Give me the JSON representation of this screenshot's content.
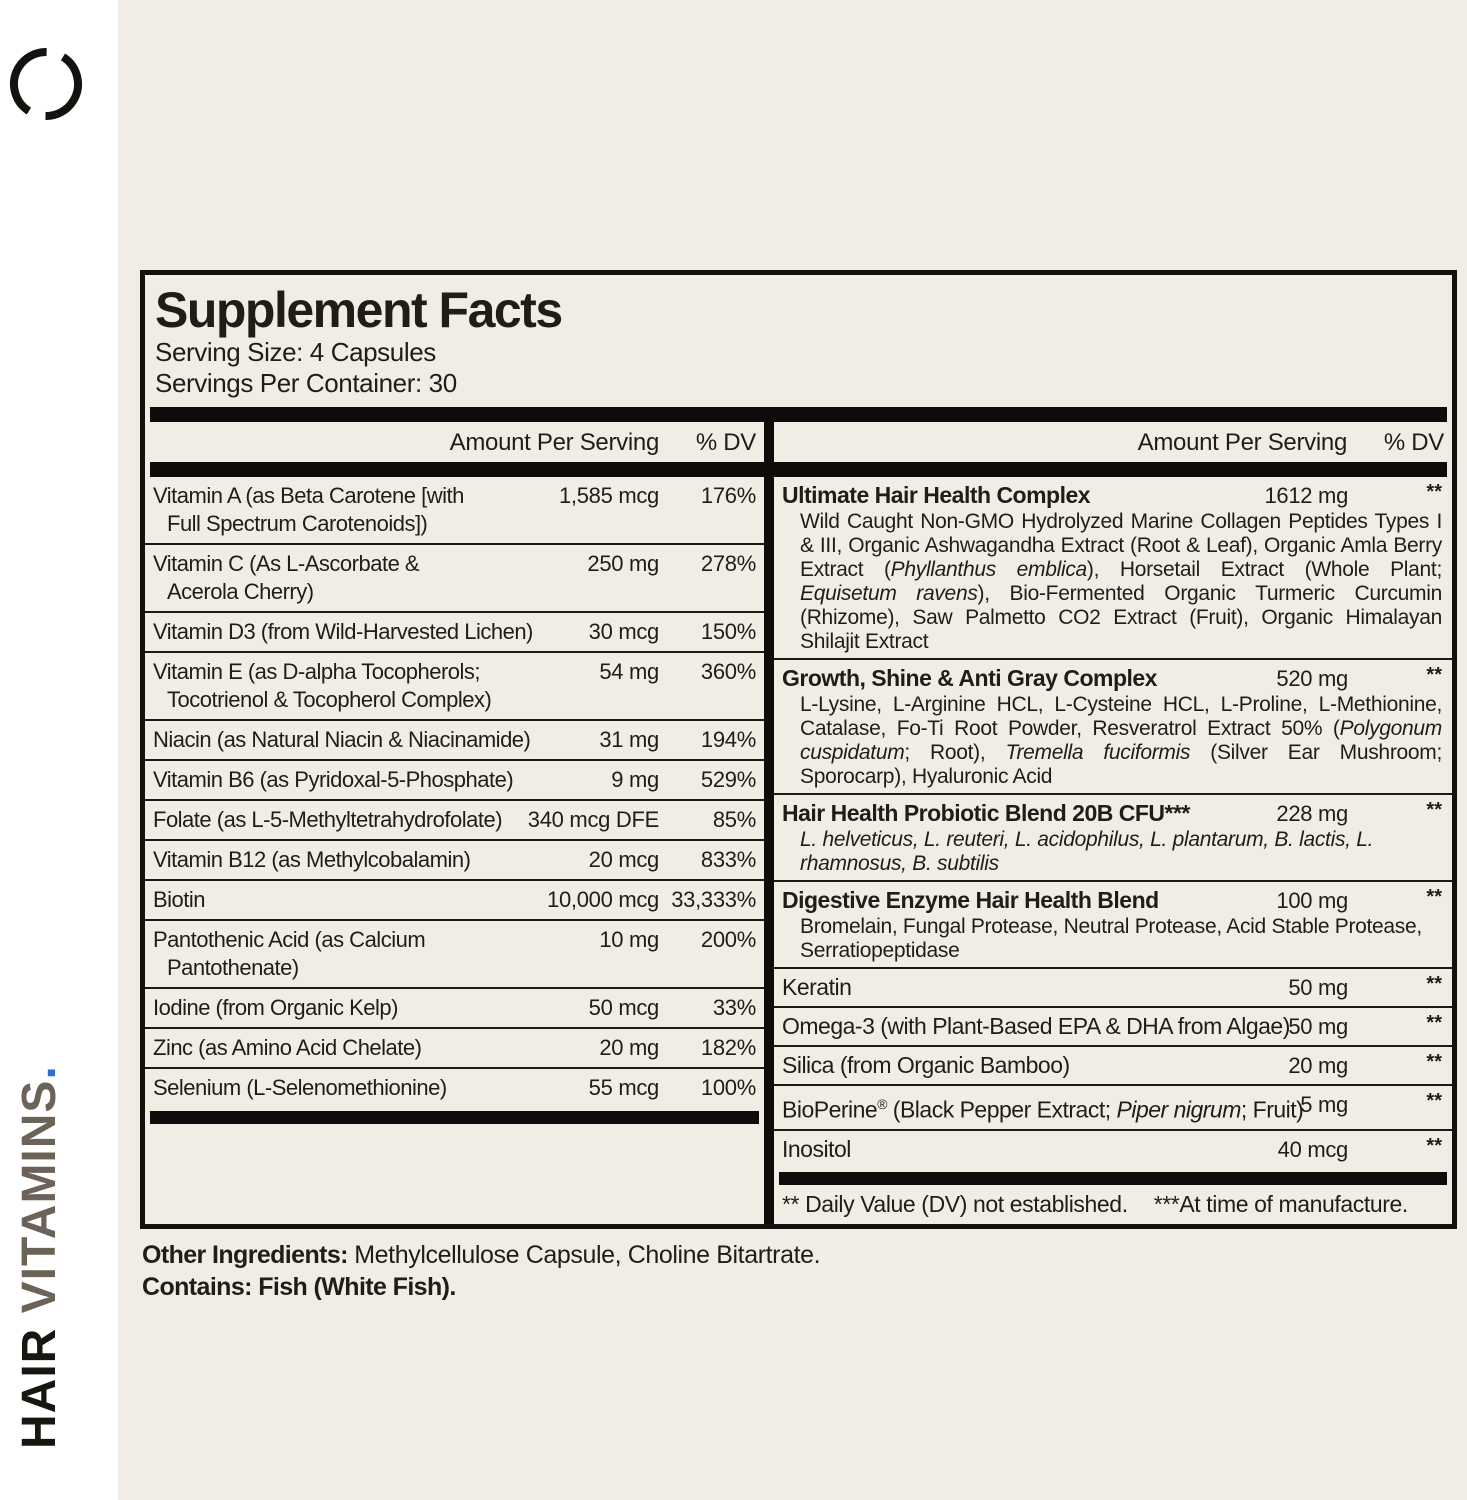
{
  "brand": {
    "vertical": {
      "primary": "HAIR ",
      "secondary": "VITAMINS",
      "dot": "."
    },
    "colors": {
      "primary": "#181611",
      "secondary": "#6b6357",
      "dot": "#2e6fd2",
      "ring": "#14120f"
    },
    "logo": "open-ring-icon"
  },
  "panel": {
    "title": "Supplement Facts",
    "serving_size": "Serving Size: 4 Capsules",
    "servings_per_container": "Servings Per Container: 30",
    "header": {
      "amount": "Amount Per Serving",
      "dv": "% DV"
    },
    "left_rows": [
      {
        "lines": [
          "Vitamin A (as Beta Carotene [with",
          "Full Spectrum Carotenoids])"
        ],
        "amount": "1,585 mcg",
        "dv": "176%"
      },
      {
        "lines": [
          "Vitamin C (As L-Ascorbate &",
          "Acerola Cherry)"
        ],
        "amount": "250 mg",
        "dv": "278%"
      },
      {
        "lines": [
          "Vitamin D3 (from Wild-Harvested Lichen)"
        ],
        "amount": "30 mcg",
        "dv": "150%"
      },
      {
        "lines": [
          "Vitamin E (as D-alpha Tocopherols;",
          "Tocotrienol & Tocopherol Complex)"
        ],
        "amount": "54 mg",
        "dv": "360%"
      },
      {
        "lines": [
          "Niacin (as Natural Niacin & Niacinamide)"
        ],
        "amount": "31 mg",
        "dv": "194%"
      },
      {
        "lines": [
          "Vitamin B6 (as Pyridoxal-5-Phosphate)"
        ],
        "amount": "9 mg",
        "dv": "529%"
      },
      {
        "lines": [
          "Folate (as L-5-Methyltetrahydrofolate)"
        ],
        "amount": "340 mcg DFE",
        "dv": "85%"
      },
      {
        "lines": [
          "Vitamin B12 (as Methylcobalamin)"
        ],
        "amount": "20 mcg",
        "dv": "833%"
      },
      {
        "lines": [
          "Biotin"
        ],
        "amount": "10,000 mcg",
        "dv": "33,333%"
      },
      {
        "lines": [
          "Pantothenic Acid (as Calcium",
          "Pantothenate)"
        ],
        "amount": "10 mg",
        "dv": "200%"
      },
      {
        "lines": [
          "Iodine (from Organic Kelp)"
        ],
        "amount": "50 mcg",
        "dv": "33%"
      },
      {
        "lines": [
          "Zinc (as Amino Acid Chelate)"
        ],
        "amount": "20 mg",
        "dv": "182%"
      },
      {
        "lines": [
          "Selenium (L-Selenomethionine)"
        ],
        "amount": "55 mcg",
        "dv": "100%"
      }
    ],
    "right_items": [
      {
        "bold": true,
        "name_segments": [
          {
            "t": "Ultimate Hair Health Complex",
            "i": false
          }
        ],
        "amount": "1612 mg",
        "dv": "**",
        "justify": true,
        "desc_segments": [
          {
            "t": "Wild Caught Non-GMO Hydrolyzed Marine Collagen Peptides Types I & III, Organic Ashwagandha Extract (Root & Leaf), Organic Amla Berry Extract (",
            "i": false
          },
          {
            "t": "Phyllanthus emblica",
            "i": true
          },
          {
            "t": "), Horsetail Extract (Whole Plant; ",
            "i": false
          },
          {
            "t": "Equisetum ravens",
            "i": true
          },
          {
            "t": "), Bio-Fermented Organic Turmeric Curcumin (Rhizome), Saw Palmetto CO2 Extract (Fruit), Organic Himalayan Shilajit Extract",
            "i": false
          }
        ]
      },
      {
        "bold": true,
        "name_segments": [
          {
            "t": "Growth, Shine & Anti Gray Complex",
            "i": false
          }
        ],
        "amount": "520 mg",
        "dv": "**",
        "justify": true,
        "desc_segments": [
          {
            "t": "L-Lysine, L-Arginine HCL, L-Cysteine HCL, L-Proline, L-Methionine, Catalase, Fo-Ti Root Powder, Resveratrol Extract 50% (",
            "i": false
          },
          {
            "t": "Polygonum cuspidatum",
            "i": true
          },
          {
            "t": "; Root), ",
            "i": false
          },
          {
            "t": "Tremella fuciformis",
            "i": true
          },
          {
            "t": " (Silver Ear Mushroom; Sporocarp), Hyaluronic Acid",
            "i": false
          }
        ]
      },
      {
        "bold": true,
        "name_segments": [
          {
            "t": "Hair Health Probiotic Blend 20B CFU***",
            "i": false
          }
        ],
        "amount": "228 mg",
        "dv": "**",
        "justify": false,
        "desc_segments": [
          {
            "t": "L. helveticus, L. reuteri, L. acidophilus, L. plantarum, B. lactis, L. rhamnosus, B. subtilis",
            "i": true
          }
        ]
      },
      {
        "bold": true,
        "name_segments": [
          {
            "t": "Digestive Enzyme Hair Health Blend",
            "i": false
          }
        ],
        "amount": "100 mg",
        "dv": "**",
        "justify": false,
        "desc_segments": [
          {
            "t": "Bromelain, Fungal Protease, Neutral Protease, Acid Stable Protease, Serratiopeptidase",
            "i": false
          }
        ]
      },
      {
        "bold": false,
        "name_segments": [
          {
            "t": "Keratin",
            "i": false
          }
        ],
        "amount": "50 mg",
        "dv": "**",
        "desc_segments": null
      },
      {
        "bold": false,
        "name_segments": [
          {
            "t": "Omega-3 (with Plant-Based EPA & DHA from Algae)",
            "i": false
          }
        ],
        "amount": "50 mg",
        "dv": "**",
        "desc_segments": null
      },
      {
        "bold": false,
        "name_segments": [
          {
            "t": "Silica (from Organic Bamboo)",
            "i": false
          }
        ],
        "amount": "20 mg",
        "dv": "**",
        "desc_segments": null
      },
      {
        "bold": false,
        "name_segments": [
          {
            "t": "BioPerine",
            "i": false
          },
          {
            "t": "®",
            "i": false,
            "s": true
          },
          {
            "t": " (Black Pepper Extract; ",
            "i": false
          },
          {
            "t": "Piper nigrum",
            "i": true
          },
          {
            "t": "; Fruit)",
            "i": false
          }
        ],
        "amount": "5 mg",
        "dv": "**",
        "desc_segments": null
      },
      {
        "bold": false,
        "name_segments": [
          {
            "t": "Inositol",
            "i": false
          }
        ],
        "amount": "40 mcg",
        "dv": "**",
        "desc_segments": null
      }
    ],
    "footnote1": "** Daily Value (DV) not established.",
    "footnote2": "***At time of manufacture."
  },
  "below": {
    "other_label": "Other Ingredients: ",
    "other_text": "Methylcellulose Capsule, Choline Bitartrate.",
    "contains": "Contains: Fish (White Fish)."
  }
}
